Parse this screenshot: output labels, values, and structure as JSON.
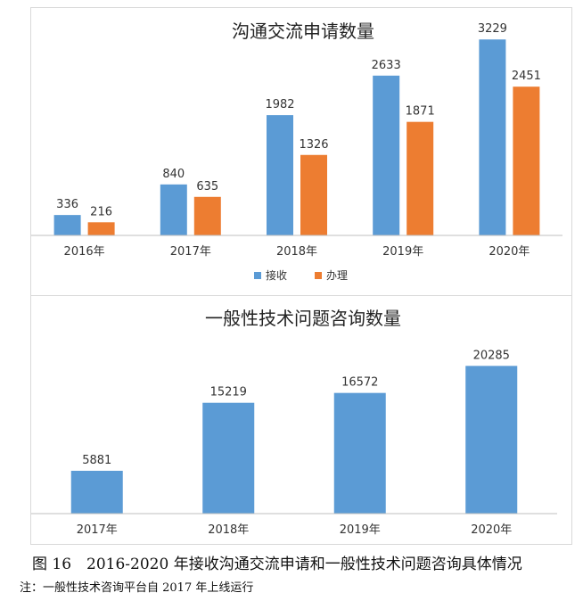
{
  "chart_data": [
    {
      "type": "bar",
      "title": "沟通交流申请数量",
      "categories": [
        "2016年",
        "2017年",
        "2018年",
        "2019年",
        "2020年"
      ],
      "series": [
        {
          "name": "接收",
          "values": [
            336,
            840,
            1982,
            2633,
            3229
          ],
          "color": "#5b9bd5"
        },
        {
          "name": "办理",
          "values": [
            216,
            635,
            1326,
            1871,
            2451
          ],
          "color": "#ed7d31"
        }
      ],
      "ylim": [
        0,
        3600
      ],
      "grid": false,
      "legend": "bottom"
    },
    {
      "type": "bar",
      "title": "一般性技术问题咨询数量",
      "categories": [
        "2017年",
        "2018年",
        "2019年",
        "2020年"
      ],
      "series": [
        {
          "values": [
            5881,
            15219,
            16572,
            20285
          ],
          "color": "#5b9bd5"
        }
      ],
      "ylim": [
        0,
        24000
      ],
      "grid": false
    }
  ],
  "caption": "图 16　2016-2020 年接收沟通交流申请和一般性技术问题咨询具体情况",
  "note": "注：一般性技术咨询平台自 2017 年上线运行"
}
